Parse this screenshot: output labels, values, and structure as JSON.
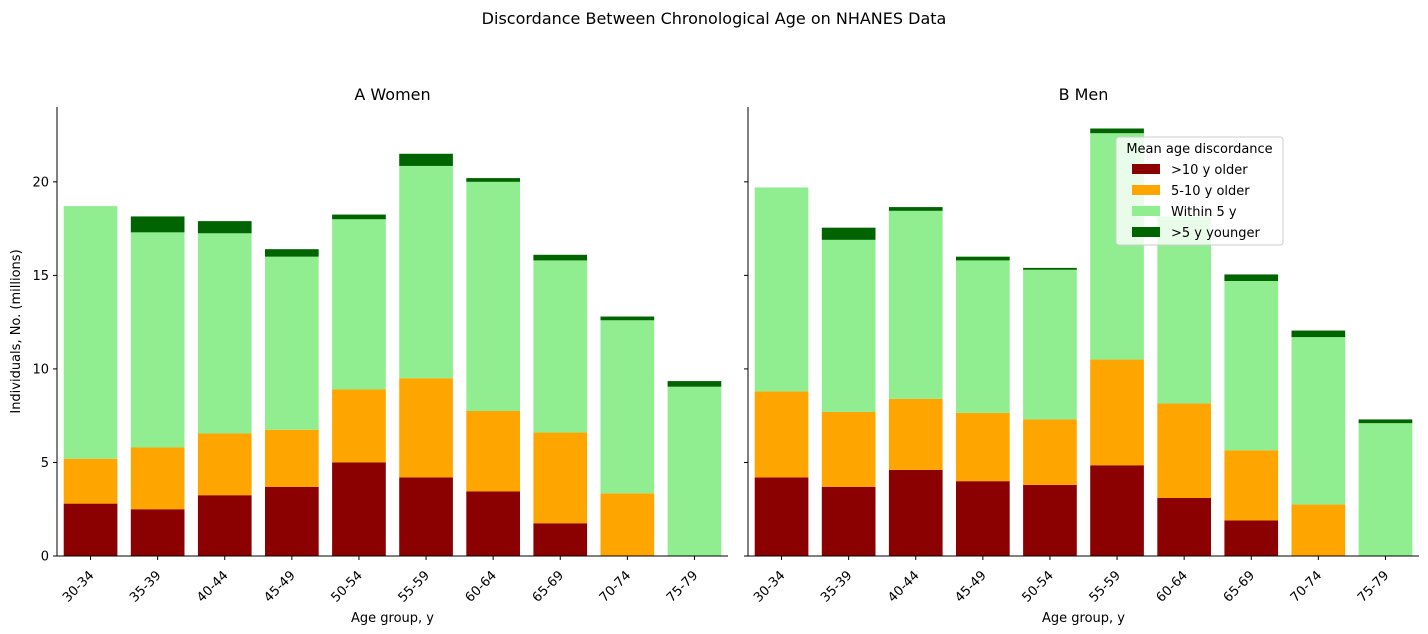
{
  "suptitle": "Discordance Between Chronological Age on NHANES Data",
  "colors": {
    "older10": "#8b0000",
    "older5_10": "#ffa500",
    "within5": "#90ee90",
    "younger5": "#006400"
  },
  "legend": {
    "title": "Mean age discordance",
    "entries": [
      {
        "label": ">10 y older",
        "color_key": "older10"
      },
      {
        "label": "5-10 y older",
        "color_key": "older5_10"
      },
      {
        "label": "Within 5 y",
        "color_key": "within5"
      },
      {
        "label": ">5 y younger",
        "color_key": "younger5"
      }
    ],
    "location": "upper-right of panel B"
  },
  "chart_data": [
    {
      "type": "bar",
      "stacked": true,
      "title": "A Women",
      "xlabel": "Age group, y",
      "ylabel": "Individuals, No. (millions)",
      "ylim": [
        0,
        24
      ],
      "yticks": [
        0,
        5,
        10,
        15,
        20
      ],
      "categories": [
        "30-34",
        "35-39",
        "40-44",
        "45-49",
        "50-54",
        "55-59",
        "60-64",
        "65-69",
        "70-74",
        "75-79"
      ],
      "series": [
        {
          "name": ">10 y older",
          "color_key": "older10",
          "values": [
            2.8,
            2.5,
            3.25,
            3.7,
            5.0,
            4.2,
            3.45,
            1.75,
            0,
            0
          ]
        },
        {
          "name": "5-10 y older",
          "color_key": "older5_10",
          "values": [
            2.4,
            3.3,
            3.3,
            3.05,
            3.9,
            5.3,
            4.3,
            4.85,
            3.35,
            0
          ]
        },
        {
          "name": "Within 5 y",
          "color_key": "within5",
          "values": [
            13.5,
            11.5,
            10.7,
            9.25,
            9.1,
            11.35,
            12.25,
            9.2,
            9.25,
            9.05
          ]
        },
        {
          "name": ">5 y younger",
          "color_key": "younger5",
          "values": [
            0,
            0.85,
            0.65,
            0.4,
            0.25,
            0.65,
            0.2,
            0.3,
            0.2,
            0.3
          ]
        }
      ]
    },
    {
      "type": "bar",
      "stacked": true,
      "title": "B Men",
      "xlabel": "Age group, y",
      "ylabel": "",
      "ylim": [
        0,
        24
      ],
      "yticks": [
        0,
        5,
        10,
        15,
        20
      ],
      "categories": [
        "30-34",
        "35-39",
        "40-44",
        "45-49",
        "50-54",
        "55-59",
        "60-64",
        "65-69",
        "70-74",
        "75-79"
      ],
      "series": [
        {
          "name": ">10 y older",
          "color_key": "older10",
          "values": [
            4.2,
            3.7,
            4.6,
            4.0,
            3.8,
            4.85,
            3.1,
            1.9,
            0,
            0
          ]
        },
        {
          "name": "5-10 y older",
          "color_key": "older5_10",
          "values": [
            4.6,
            4.0,
            3.8,
            3.65,
            3.5,
            5.65,
            5.05,
            3.75,
            2.75,
            0
          ]
        },
        {
          "name": "Within 5 y",
          "color_key": "within5",
          "values": [
            10.9,
            9.2,
            10.05,
            8.15,
            8.0,
            12.1,
            10.0,
            9.05,
            8.95,
            7.1
          ]
        },
        {
          "name": ">5 y younger",
          "color_key": "younger5",
          "values": [
            0,
            0.65,
            0.2,
            0.2,
            0.1,
            0.25,
            0,
            0.35,
            0.35,
            0.2
          ]
        }
      ]
    }
  ]
}
